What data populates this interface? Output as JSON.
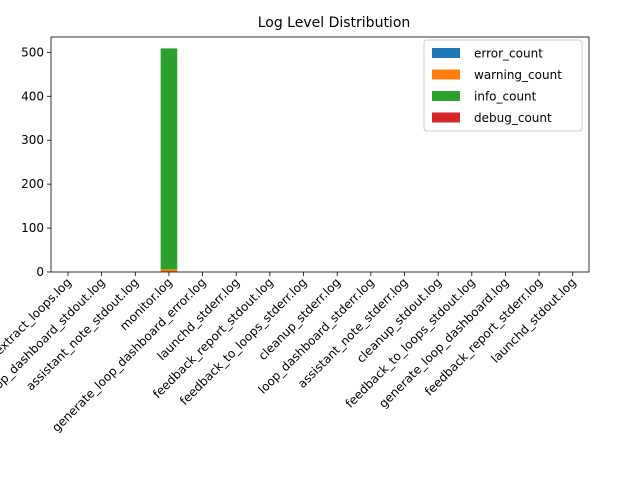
{
  "chart_data": {
    "type": "bar",
    "stacked": true,
    "title": "Log Level Distribution",
    "xlabel": "",
    "ylabel": "",
    "ylim": [
      0,
      535
    ],
    "yticks": [
      0,
      100,
      200,
      300,
      400,
      500
    ],
    "grid": false,
    "legend_position": "top-right",
    "categories": [
      "extract_loops.log",
      "loop_dashboard_stdout.log",
      "assistant_note_stdout.log",
      "monitor.log",
      "generate_loop_dashboard_error.log",
      "launchd_stderr.log",
      "feedback_report_stdout.log",
      "feedback_to_loops_stderr.log",
      "cleanup_stderr.log",
      "loop_dashboard_stderr.log",
      "assistant_note_stderr.log",
      "cleanup_stdout.log",
      "feedback_to_loops_stdout.log",
      "generate_loop_dashboard.log",
      "feedback_report_stderr.log",
      "launchd_stdout.log"
    ],
    "series": [
      {
        "name": "error_count",
        "color": "#1f77b4",
        "values": [
          0,
          0,
          0,
          0,
          0,
          0,
          0,
          0,
          0,
          0,
          0,
          0,
          0,
          0,
          0,
          0
        ]
      },
      {
        "name": "warning_count",
        "color": "#ff7f0e",
        "values": [
          0,
          0,
          0,
          6,
          0,
          0,
          0,
          0,
          0,
          0,
          0,
          0,
          0,
          0,
          0,
          0
        ]
      },
      {
        "name": "info_count",
        "color": "#2ca02c",
        "values": [
          0,
          0,
          0,
          503,
          0,
          0,
          0,
          0,
          0,
          0,
          0,
          0,
          0,
          0,
          0,
          0
        ]
      },
      {
        "name": "debug_count",
        "color": "#d62728",
        "values": [
          0,
          0,
          0,
          0,
          0,
          0,
          0,
          0,
          0,
          0,
          0,
          0,
          0,
          0,
          0,
          0
        ]
      }
    ]
  }
}
